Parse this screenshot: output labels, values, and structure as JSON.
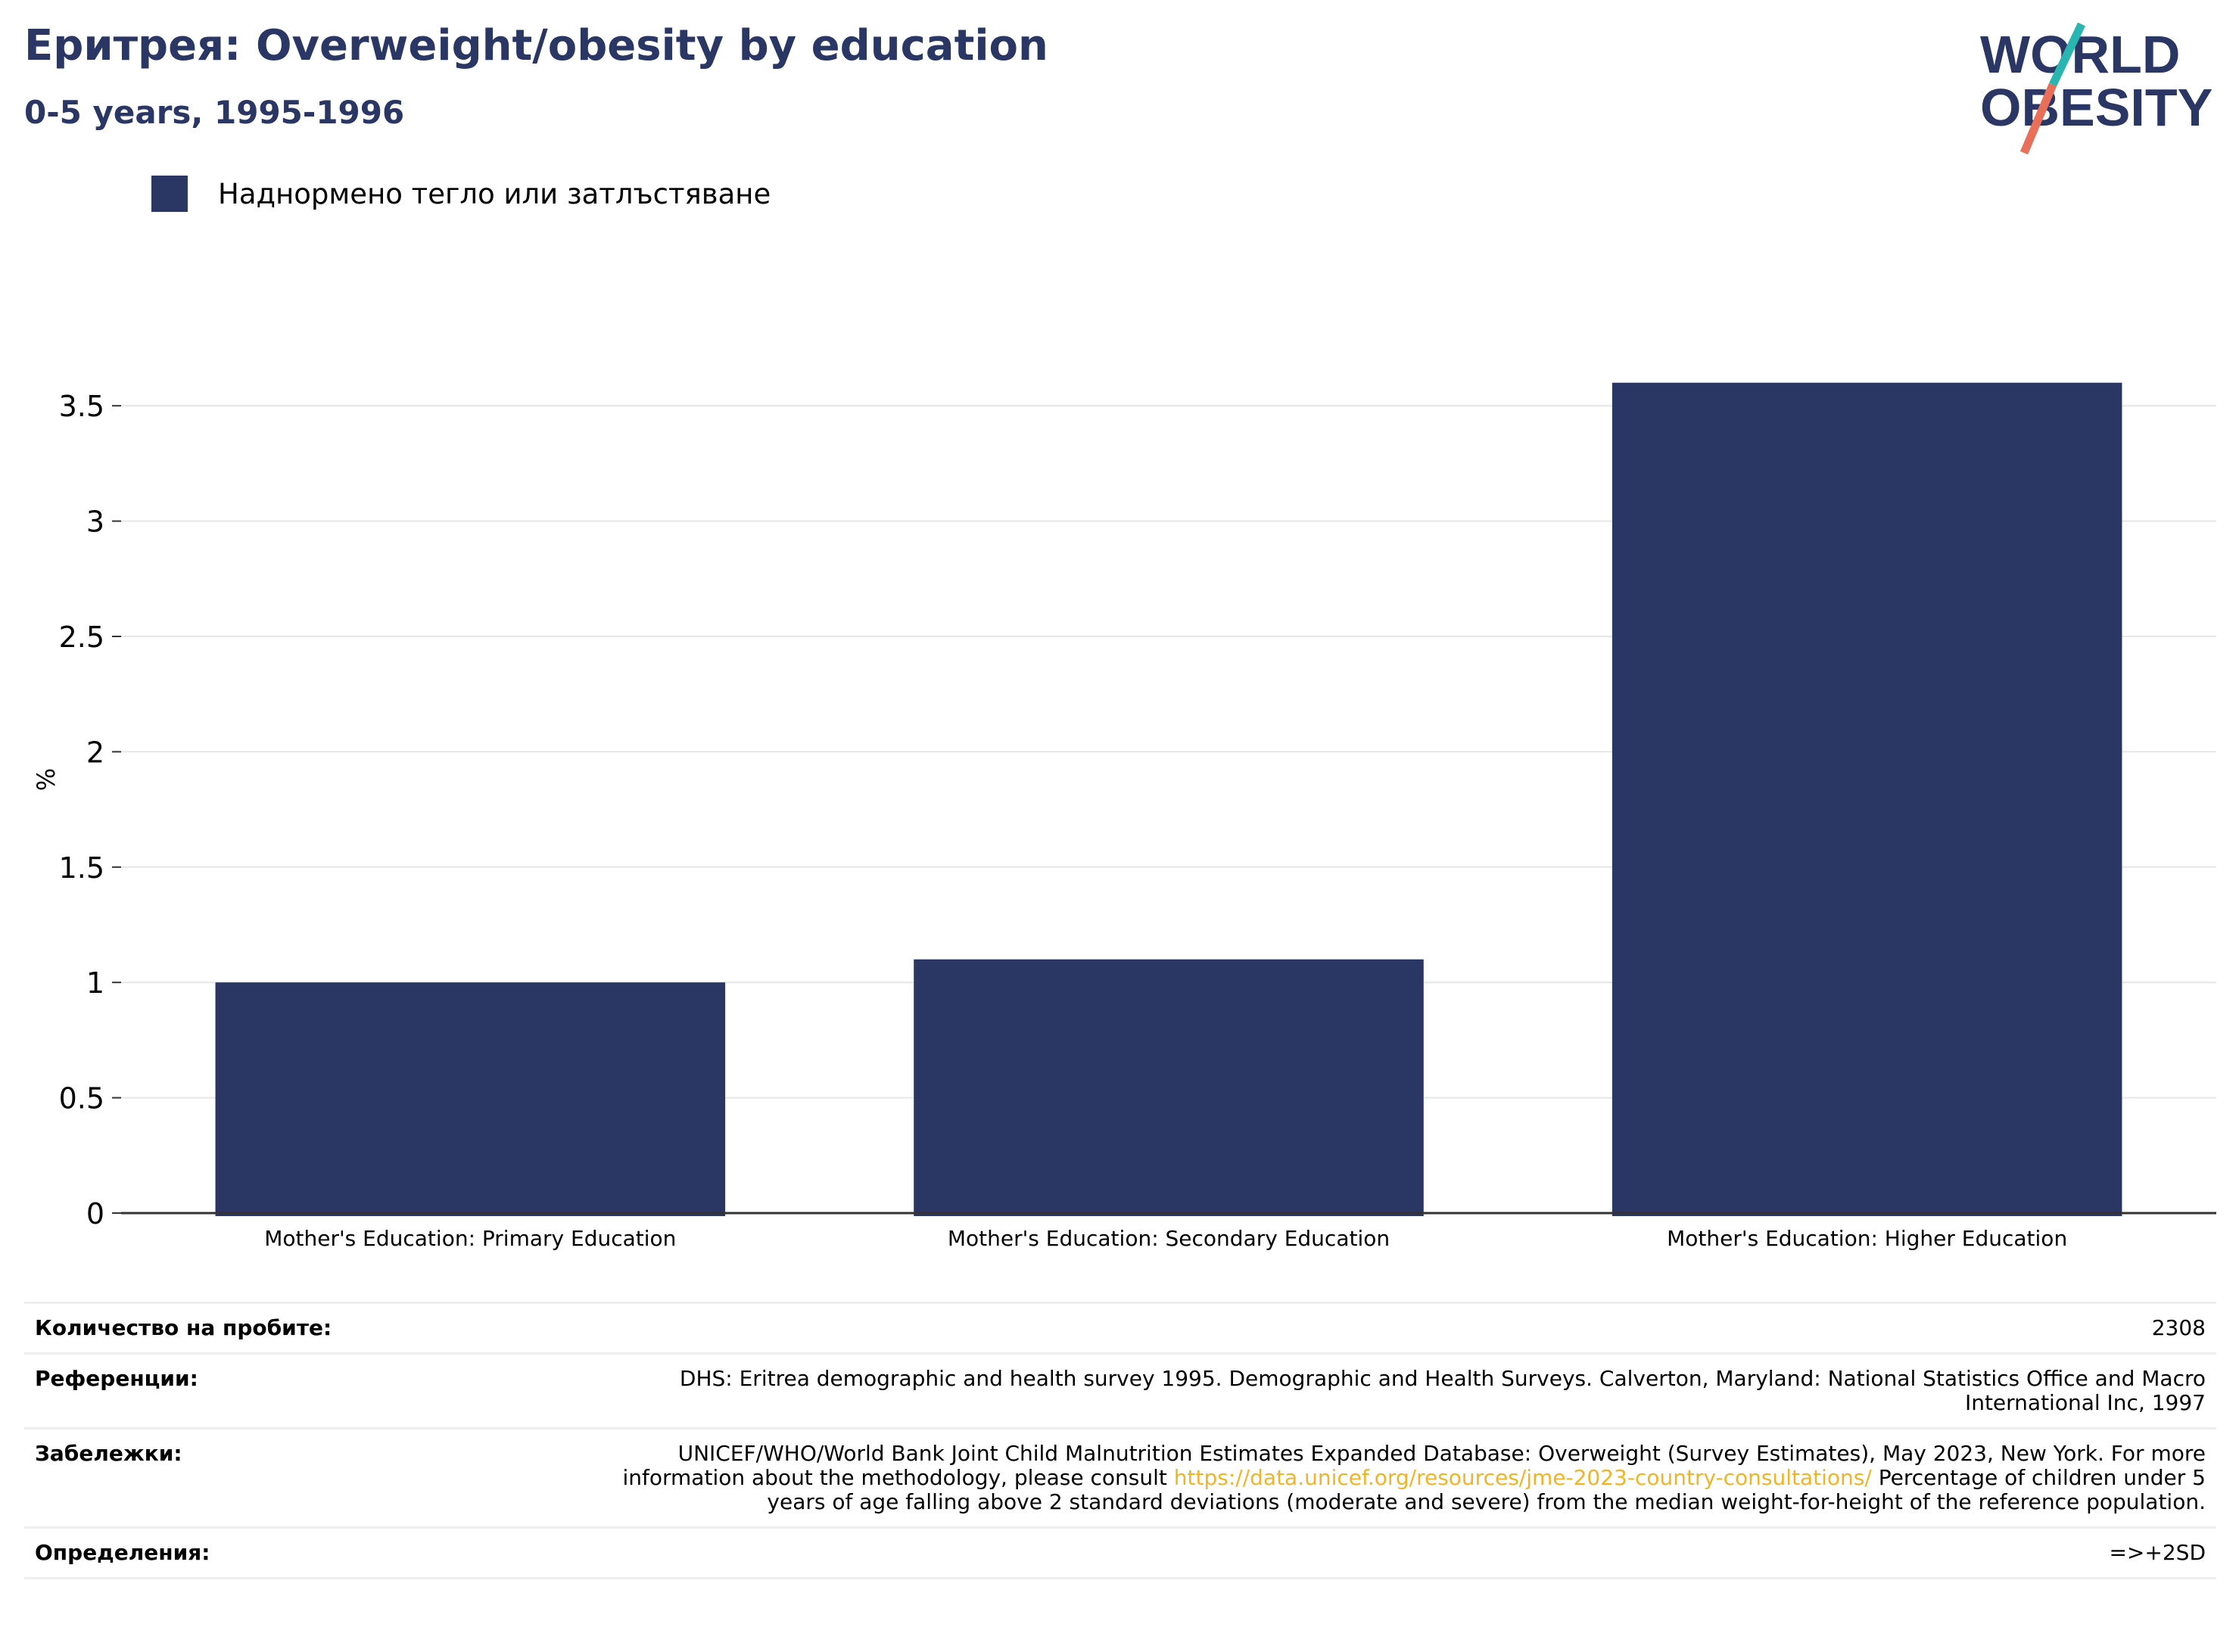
{
  "header": {
    "title": "Еритрея: Overweight/obesity by education",
    "subtitle": "0-5 years, 1995-1996"
  },
  "logo": {
    "line1": "WORLD",
    "line2": "OBESITY",
    "colors": {
      "text": "#2a3663",
      "slash_teal": "#2bb5b0",
      "slash_coral": "#e8705a"
    }
  },
  "colors": {
    "bar": "#2a3663",
    "grid": "#e6e6e6",
    "axis": "#333333",
    "link": "#f0b429"
  },
  "chart_data": {
    "type": "bar",
    "categories": [
      "Mother's Education: Primary Education",
      "Mother's Education: Secondary Education",
      "Mother's Education: Higher Education"
    ],
    "series": [
      {
        "name": "Наднормено тегло или затлъстяване",
        "values": [
          1.0,
          1.1,
          3.6
        ]
      }
    ],
    "title": "Еритрея: Overweight/obesity by education",
    "subtitle": "0-5 years, 1995-1996",
    "xlabel": "",
    "ylabel": "%",
    "ylim": [
      0,
      3.75
    ],
    "yticks": [
      "0",
      "0.5",
      "1",
      "1.5",
      "2",
      "2.5",
      "3",
      "3.5"
    ],
    "grid": true,
    "legend_position": "top-left"
  },
  "footer": {
    "sample_label": "Количество на пробите:",
    "sample_value": "2308",
    "references_label": "Референции:",
    "references_value": "DHS: Eritrea demographic and health survey 1995. Demographic and Health Surveys. Calverton, Maryland: National Statistics Office and Macro International Inc, 1997",
    "notes_label": "Забележки:",
    "notes_before": "UNICEF/WHO/World Bank Joint Child Malnutrition Estimates Expanded Database: Overweight (Survey Estimates), May 2023, New York. For more information about the methodology, please consult ",
    "notes_link": "https://data.unicef.org/resources/jme-2023-country-consultations/",
    "notes_after": " Percentage of children under 5 years of age falling above 2 standard deviations (moderate and severe) from the median weight-for-height of the reference population.",
    "definitions_label": "Определения:",
    "definitions_value": "=>+2SD"
  }
}
